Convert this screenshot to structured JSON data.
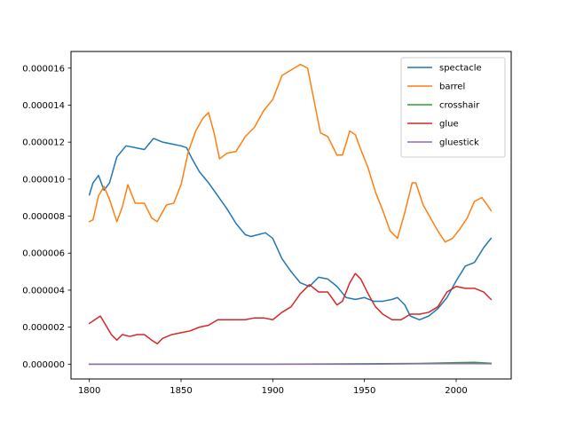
{
  "chart_data": {
    "type": "line",
    "title": "",
    "xlabel": "",
    "ylabel": "",
    "xlim": [
      1790,
      2030
    ],
    "ylim": [
      -8e-07,
      1.69e-05
    ],
    "xticks": [
      1800,
      1850,
      1900,
      1950,
      2000
    ],
    "xtick_labels": [
      "1800",
      "1850",
      "1900",
      "1950",
      "2000"
    ],
    "yticks": [
      0,
      2e-06,
      4e-06,
      6e-06,
      8e-06,
      1e-05,
      1.2e-05,
      1.4e-05,
      1.6e-05
    ],
    "ytick_labels": [
      "0.000000",
      "0.000002",
      "0.000004",
      "0.000006",
      "0.000008",
      "0.000010",
      "0.000012",
      "0.000014",
      "0.000016"
    ],
    "grid": false,
    "legend_position": "upper right",
    "series": [
      {
        "name": "spectacle",
        "color": "#1f77b4",
        "points": [
          [
            1800,
            9.15e-06
          ],
          [
            1802,
            9.8e-06
          ],
          [
            1805,
            1.02e-05
          ],
          [
            1808,
            9.4e-06
          ],
          [
            1811,
            9.8e-06
          ],
          [
            1815,
            1.12e-05
          ],
          [
            1820,
            1.18e-05
          ],
          [
            1825,
            1.17e-05
          ],
          [
            1830,
            1.16e-05
          ],
          [
            1835,
            1.22e-05
          ],
          [
            1840,
            1.2e-05
          ],
          [
            1845,
            1.19e-05
          ],
          [
            1850,
            1.18e-05
          ],
          [
            1853,
            1.17e-05
          ],
          [
            1856,
            1.11e-05
          ],
          [
            1860,
            1.04e-05
          ],
          [
            1865,
            9.8e-06
          ],
          [
            1870,
            9.1e-06
          ],
          [
            1875,
            8.4e-06
          ],
          [
            1880,
            7.6e-06
          ],
          [
            1885,
            7e-06
          ],
          [
            1888,
            6.9e-06
          ],
          [
            1892,
            7e-06
          ],
          [
            1896,
            7.1e-06
          ],
          [
            1900,
            6.8e-06
          ],
          [
            1905,
            5.7e-06
          ],
          [
            1910,
            5e-06
          ],
          [
            1915,
            4.4e-06
          ],
          [
            1920,
            4.2e-06
          ],
          [
            1925,
            4.7e-06
          ],
          [
            1930,
            4.6e-06
          ],
          [
            1935,
            4.2e-06
          ],
          [
            1940,
            3.6e-06
          ],
          [
            1945,
            3.5e-06
          ],
          [
            1950,
            3.6e-06
          ],
          [
            1955,
            3.4e-06
          ],
          [
            1960,
            3.4e-06
          ],
          [
            1965,
            3.5e-06
          ],
          [
            1968,
            3.6e-06
          ],
          [
            1972,
            3.2e-06
          ],
          [
            1975,
            2.6e-06
          ],
          [
            1980,
            2.4e-06
          ],
          [
            1985,
            2.6e-06
          ],
          [
            1990,
            3e-06
          ],
          [
            1995,
            3.6e-06
          ],
          [
            2000,
            4.5e-06
          ],
          [
            2005,
            5.3e-06
          ],
          [
            2010,
            5.5e-06
          ],
          [
            2015,
            6.3e-06
          ],
          [
            2019,
            6.8e-06
          ]
        ]
      },
      {
        "name": "barrel",
        "color": "#ff7f0e",
        "points": [
          [
            1800,
            7.7e-06
          ],
          [
            1802,
            7.8e-06
          ],
          [
            1805,
            9.1e-06
          ],
          [
            1808,
            9.6e-06
          ],
          [
            1811,
            8.9e-06
          ],
          [
            1815,
            7.7e-06
          ],
          [
            1818,
            8.5e-06
          ],
          [
            1821,
            9.7e-06
          ],
          [
            1825,
            8.7e-06
          ],
          [
            1830,
            8.7e-06
          ],
          [
            1834,
            7.9e-06
          ],
          [
            1837,
            7.7e-06
          ],
          [
            1842,
            8.6e-06
          ],
          [
            1846,
            8.7e-06
          ],
          [
            1850,
            9.7e-06
          ],
          [
            1854,
            1.15e-05
          ],
          [
            1858,
            1.26e-05
          ],
          [
            1862,
            1.33e-05
          ],
          [
            1865,
            1.36e-05
          ],
          [
            1868,
            1.25e-05
          ],
          [
            1871,
            1.11e-05
          ],
          [
            1875,
            1.14e-05
          ],
          [
            1880,
            1.15e-05
          ],
          [
            1885,
            1.23e-05
          ],
          [
            1890,
            1.28e-05
          ],
          [
            1895,
            1.37e-05
          ],
          [
            1900,
            1.43e-05
          ],
          [
            1905,
            1.56e-05
          ],
          [
            1910,
            1.59e-05
          ],
          [
            1915,
            1.62e-05
          ],
          [
            1919,
            1.6e-05
          ],
          [
            1922,
            1.45e-05
          ],
          [
            1926,
            1.25e-05
          ],
          [
            1930,
            1.23e-05
          ],
          [
            1935,
            1.13e-05
          ],
          [
            1938,
            1.13e-05
          ],
          [
            1942,
            1.26e-05
          ],
          [
            1945,
            1.24e-05
          ],
          [
            1948,
            1.16e-05
          ],
          [
            1952,
            1.06e-05
          ],
          [
            1956,
            9.3e-06
          ],
          [
            1960,
            8.3e-06
          ],
          [
            1964,
            7.2e-06
          ],
          [
            1968,
            6.8e-06
          ],
          [
            1972,
            8.2e-06
          ],
          [
            1976,
            9.8e-06
          ],
          [
            1978,
            9.8e-06
          ],
          [
            1982,
            8.6e-06
          ],
          [
            1986,
            7.9e-06
          ],
          [
            1990,
            7.2e-06
          ],
          [
            1994,
            6.6e-06
          ],
          [
            1998,
            6.8e-06
          ],
          [
            2002,
            7.3e-06
          ],
          [
            2006,
            7.9e-06
          ],
          [
            2010,
            8.8e-06
          ],
          [
            2014,
            9e-06
          ],
          [
            2017,
            8.6e-06
          ],
          [
            2019,
            8.3e-06
          ]
        ]
      },
      {
        "name": "crosshair",
        "color": "#2ca02c",
        "points": [
          [
            1800,
            0
          ],
          [
            1850,
            0
          ],
          [
            1900,
            0
          ],
          [
            1950,
            2e-08
          ],
          [
            1980,
            4e-08
          ],
          [
            2000,
            8e-08
          ],
          [
            2010,
            1e-07
          ],
          [
            2019,
            5e-08
          ]
        ]
      },
      {
        "name": "glue",
        "color": "#d62728",
        "points": [
          [
            1800,
            2.2e-06
          ],
          [
            1803,
            2.4e-06
          ],
          [
            1806,
            2.6e-06
          ],
          [
            1809,
            2.1e-06
          ],
          [
            1812,
            1.6e-06
          ],
          [
            1815,
            1.3e-06
          ],
          [
            1818,
            1.6e-06
          ],
          [
            1822,
            1.5e-06
          ],
          [
            1826,
            1.6e-06
          ],
          [
            1830,
            1.6e-06
          ],
          [
            1834,
            1.3e-06
          ],
          [
            1837,
            1.1e-06
          ],
          [
            1840,
            1.4e-06
          ],
          [
            1845,
            1.6e-06
          ],
          [
            1850,
            1.7e-06
          ],
          [
            1855,
            1.8e-06
          ],
          [
            1860,
            2e-06
          ],
          [
            1865,
            2.1e-06
          ],
          [
            1870,
            2.4e-06
          ],
          [
            1875,
            2.4e-06
          ],
          [
            1880,
            2.4e-06
          ],
          [
            1885,
            2.4e-06
          ],
          [
            1890,
            2.5e-06
          ],
          [
            1895,
            2.5e-06
          ],
          [
            1900,
            2.4e-06
          ],
          [
            1905,
            2.8e-06
          ],
          [
            1910,
            3.1e-06
          ],
          [
            1915,
            3.8e-06
          ],
          [
            1920,
            4.3e-06
          ],
          [
            1925,
            3.9e-06
          ],
          [
            1930,
            3.9e-06
          ],
          [
            1935,
            3.2e-06
          ],
          [
            1938,
            3.4e-06
          ],
          [
            1942,
            4.4e-06
          ],
          [
            1945,
            4.9e-06
          ],
          [
            1948,
            4.6e-06
          ],
          [
            1952,
            3.8e-06
          ],
          [
            1956,
            3.1e-06
          ],
          [
            1960,
            2.7e-06
          ],
          [
            1965,
            2.4e-06
          ],
          [
            1970,
            2.4e-06
          ],
          [
            1975,
            2.7e-06
          ],
          [
            1980,
            2.7e-06
          ],
          [
            1985,
            2.8e-06
          ],
          [
            1990,
            3.1e-06
          ],
          [
            1995,
            3.9e-06
          ],
          [
            2000,
            4.2e-06
          ],
          [
            2005,
            4.1e-06
          ],
          [
            2010,
            4.1e-06
          ],
          [
            2015,
            3.9e-06
          ],
          [
            2019,
            3.5e-06
          ]
        ]
      },
      {
        "name": "gluestick",
        "color": "#9467bd",
        "points": [
          [
            1800,
            0
          ],
          [
            1850,
            0
          ],
          [
            1900,
            0
          ],
          [
            1950,
            0
          ],
          [
            1980,
            2e-08
          ],
          [
            2000,
            3e-08
          ],
          [
            2010,
            3e-08
          ],
          [
            2019,
            2e-08
          ]
        ]
      }
    ]
  }
}
